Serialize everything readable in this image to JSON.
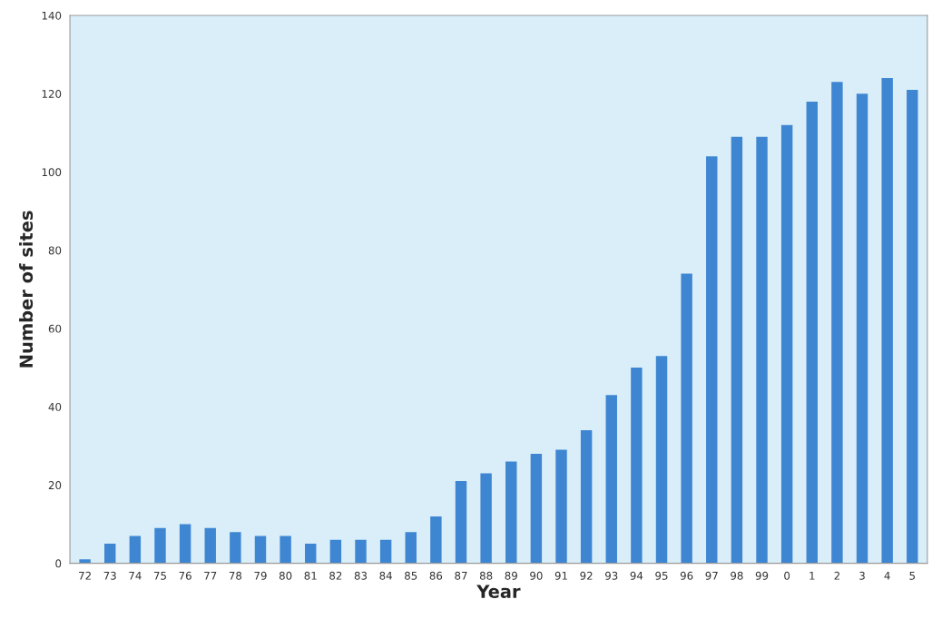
{
  "chart_data": {
    "type": "bar",
    "xlabel": "Year",
    "ylabel": "Number of sites",
    "categories": [
      "72",
      "73",
      "74",
      "75",
      "76",
      "77",
      "78",
      "79",
      "80",
      "81",
      "82",
      "83",
      "84",
      "85",
      "86",
      "87",
      "88",
      "89",
      "90",
      "91",
      "92",
      "93",
      "94",
      "95",
      "96",
      "97",
      "98",
      "99",
      "0",
      "1",
      "2",
      "3",
      "4",
      "5"
    ],
    "values": [
      1,
      5,
      7,
      9,
      10,
      9,
      8,
      7,
      7,
      5,
      6,
      6,
      6,
      8,
      12,
      21,
      23,
      26,
      28,
      29,
      34,
      43,
      50,
      53,
      74,
      104,
      109,
      109,
      112,
      118,
      123,
      120,
      124,
      121
    ],
    "color": "#3f86d2",
    "ylim": [
      0,
      140
    ],
    "yticks": [
      0,
      20,
      40,
      60,
      80,
      100,
      120,
      140
    ],
    "grid": false
  }
}
